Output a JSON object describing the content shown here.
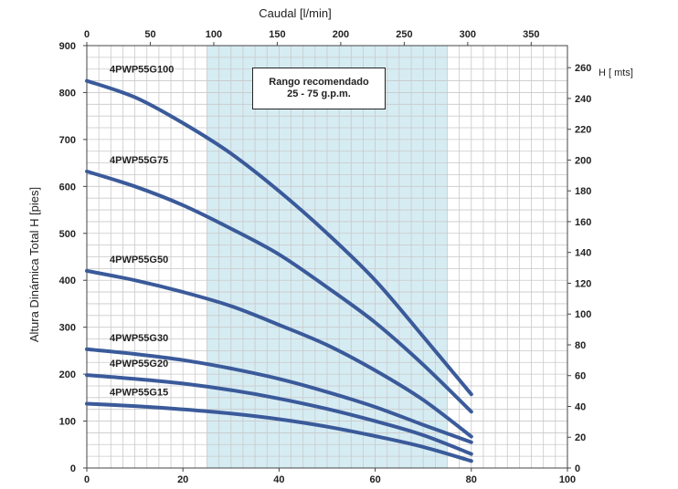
{
  "chart_data": {
    "type": "line",
    "x_top_label": "Caudal [l/min]",
    "y_left_label": "Altura Dinámica Total H [pies]",
    "y_right_label": "H [ mts]",
    "x_bottom_ticks": [
      0,
      20,
      40,
      60,
      80,
      100
    ],
    "x_top_ticks": [
      0,
      50,
      100,
      150,
      200,
      250,
      300,
      350
    ],
    "y_left_ticks": [
      0,
      100,
      200,
      300,
      400,
      500,
      600,
      700,
      800,
      900
    ],
    "y_right_ticks": [
      0,
      20,
      40,
      60,
      80,
      100,
      120,
      140,
      160,
      180,
      200,
      220,
      240,
      260
    ],
    "x_range": [
      0,
      100
    ],
    "y_range": [
      0,
      900
    ],
    "grid": true,
    "shaded_region": {
      "x_start": 25,
      "x_end": 75,
      "color": "#d6ecf3"
    },
    "annotation": {
      "line1": "Rango recomendado",
      "line2": "25 - 75 g.p.m."
    },
    "series_color": "#3a5a9a",
    "series": [
      {
        "name": "4PWP55G100",
        "x": [
          0,
          10,
          20,
          30,
          40,
          50,
          60,
          70,
          80
        ],
        "y": [
          825,
          790,
          735,
          670,
          590,
          500,
          400,
          280,
          157
        ]
      },
      {
        "name": "4PWP55G75",
        "x": [
          0,
          10,
          20,
          30,
          40,
          50,
          60,
          70,
          80
        ],
        "y": [
          632,
          600,
          560,
          510,
          455,
          385,
          310,
          220,
          120
        ]
      },
      {
        "name": "4PWP55G50",
        "x": [
          0,
          10,
          20,
          30,
          40,
          50,
          60,
          70,
          80
        ],
        "y": [
          420,
          400,
          375,
          345,
          305,
          262,
          208,
          145,
          67
        ]
      },
      {
        "name": "4PWP55G30",
        "x": [
          0,
          10,
          20,
          30,
          40,
          50,
          60,
          70,
          80
        ],
        "y": [
          253,
          243,
          230,
          212,
          190,
          162,
          130,
          92,
          55
        ]
      },
      {
        "name": "4PWP55G20",
        "x": [
          0,
          10,
          20,
          30,
          40,
          50,
          60,
          70,
          80
        ],
        "y": [
          198,
          190,
          180,
          166,
          148,
          126,
          100,
          70,
          30
        ]
      },
      {
        "name": "4PWP55G15",
        "x": [
          0,
          10,
          20,
          30,
          40,
          50,
          60,
          70,
          80
        ],
        "y": [
          137,
          132,
          125,
          116,
          104,
          88,
          68,
          45,
          15
        ]
      }
    ]
  }
}
